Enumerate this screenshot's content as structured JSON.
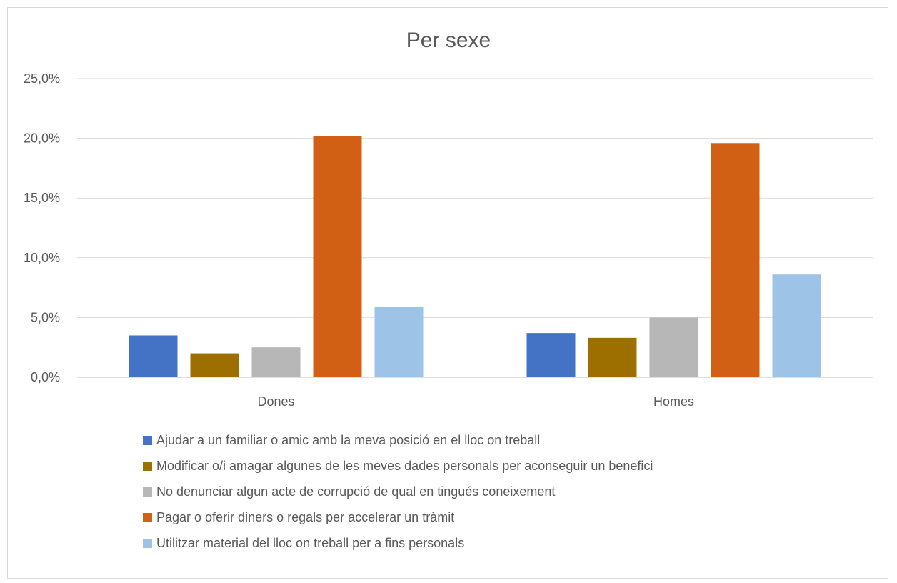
{
  "chart_data": {
    "type": "bar",
    "title": "Per sexe",
    "xlabel": "",
    "ylabel": "",
    "categories": [
      "Dones",
      "Homes"
    ],
    "ylim": [
      0,
      25
    ],
    "yticks": [
      0,
      5,
      10,
      15,
      20,
      25
    ],
    "ytick_labels": [
      "0,0%",
      "5,0%",
      "10,0%",
      "15,0%",
      "20,0%",
      "25,0%"
    ],
    "grid": true,
    "legend_position": "bottom",
    "series": [
      {
        "name": "Ajudar a un familiar o amic amb la meva posició en el lloc on treball",
        "color": "#4472c4",
        "values": [
          3.5,
          3.7
        ]
      },
      {
        "name": "Modificar o/i amagar algunes de les meves dades personals per aconseguir un benefici",
        "color": "#9c6f00",
        "values": [
          2.0,
          3.3
        ]
      },
      {
        "name": "No denunciar algun acte de corrupció de qual en tingués coneixement",
        "color": "#b7b7b7",
        "values": [
          2.5,
          5.0
        ]
      },
      {
        "name": "Pagar o oferir diners o regals per accelerar un tràmit",
        "color": "#d15f14",
        "values": [
          20.2,
          19.6
        ]
      },
      {
        "name": "Utilitzar material del lloc on treball per a fins personals",
        "color": "#9dc3e6",
        "values": [
          5.9,
          8.6
        ]
      }
    ]
  }
}
